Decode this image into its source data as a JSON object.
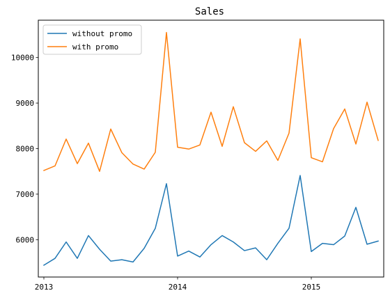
{
  "chart_data": {
    "type": "line",
    "title": "Sales",
    "xlabel": "",
    "ylabel": "",
    "x_ticks": [
      "2013",
      "2014",
      "2015"
    ],
    "y_ticks": [
      6000,
      7000,
      8000,
      9000,
      10000
    ],
    "xlim": [
      -0.5,
      30.5
    ],
    "ylim": [
      5180,
      10820
    ],
    "legend_position": "top-left",
    "grid": false,
    "x": [
      0,
      1,
      2,
      3,
      4,
      5,
      6,
      7,
      8,
      9,
      10,
      11,
      12,
      13,
      14,
      15,
      16,
      17,
      18,
      19,
      20,
      21,
      22,
      23,
      24,
      25,
      26,
      27,
      28,
      29,
      30
    ],
    "series": [
      {
        "name": "without promo",
        "color": "#1f77b4",
        "values": [
          5440,
          5590,
          5950,
          5590,
          6090,
          5790,
          5530,
          5560,
          5510,
          5810,
          6250,
          7230,
          5640,
          5750,
          5620,
          5890,
          6090,
          5950,
          5760,
          5820,
          5560,
          5920,
          6250,
          7410,
          5740,
          5920,
          5890,
          6080,
          6710,
          5900,
          5970
        ]
      },
      {
        "name": "with promo",
        "color": "#ff7f0e",
        "values": [
          7520,
          7620,
          8210,
          7670,
          8120,
          7500,
          8430,
          7910,
          7660,
          7550,
          7920,
          10550,
          8030,
          7990,
          8080,
          8800,
          8050,
          8920,
          8130,
          7940,
          8170,
          7740,
          8340,
          10410,
          7800,
          7710,
          8440,
          8870,
          8100,
          9020,
          8180
        ]
      }
    ]
  }
}
